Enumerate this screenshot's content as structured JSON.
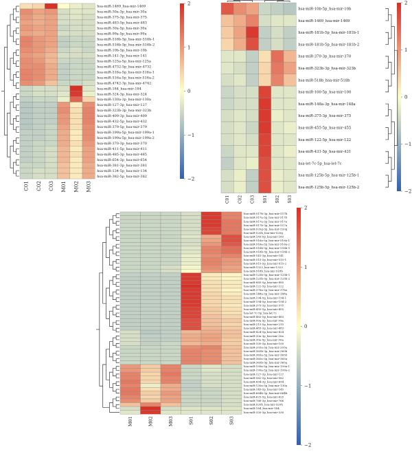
{
  "chart_data": [
    {
      "type": "heatmap",
      "columns": [
        "C01",
        "C02",
        "C03",
        "M01",
        "M02",
        "M03"
      ],
      "rows": [
        "hsa-miR-1469_hsa-mir-1469",
        "hsa-miR-30a-3p_hsa-mir-30a",
        "hsa-miR-375-3p_hsa-mir-375",
        "hsa-miR-483-5p_hsa-mir-483",
        "hsa-miR-30a-5p_hsa-mir-30a",
        "hsa-miR-99a-5p_hsa-mir-99a",
        "hsa-miR-516b-5p_hsa-mir-516b-1",
        "hsa-miR-516b-5p_hsa-mir-516b-2",
        "hsa-miR-10b-5p_hsa-mir-10b",
        "hsa-miR-141-3p_hsa-mir-141",
        "hsa-miR-125a-5p_hsa-mir-125a",
        "hsa-miR-4732-5p_hsa-mir-4732",
        "hsa-miR-516a-5p_hsa-mir-516a-1",
        "hsa-miR-516a-5p_hsa-mir-516a-2",
        "hsa-miR-4742-3p_hsa-mir-4742",
        "hsa-miR-184_hsa-mir-184",
        "hsa-miR-324-3p_hsa-mir-324",
        "hsa-miR-130a-3p_hsa-mir-130a",
        "hsa-miR-127-3p_hsa-mir-127",
        "hsa-miR-323b-3p_hsa-mir-323b",
        "hsa-miR-409-3p_hsa-mir-409",
        "hsa-miR-432-5p_hsa-mir-432",
        "hsa-miR-379-5p_hsa-mir-379",
        "hsa-miR-199a-5p_hsa-mir-199a-1",
        "hsa-miR-199a-5p_hsa-mir-199a-2",
        "hsa-miR-370-3p_hsa-mir-370",
        "hsa-miR-411-5p_hsa-mir-411",
        "hsa-miR-485-3p_hsa-mir-485",
        "hsa-miR-654-3p_hsa-mir-654",
        "hsa-miR-381-3p_hsa-mir-381",
        "hsa-miR-134-5p_hsa-mir-134",
        "hsa-miR-382-5p_hsa-mir-382"
      ],
      "values": [
        [
          0.3,
          0.4,
          2.0,
          0.0,
          -0.2,
          -0.3
        ],
        [
          1.1,
          0.9,
          1.0,
          -0.4,
          -0.3,
          -0.3
        ],
        [
          1.0,
          0.8,
          0.9,
          -0.4,
          -0.3,
          -0.4
        ],
        [
          0.9,
          0.8,
          0.9,
          -0.4,
          -0.4,
          -0.4
        ],
        [
          1.0,
          0.9,
          0.9,
          -0.5,
          -0.4,
          -0.4
        ],
        [
          0.9,
          0.8,
          0.9,
          -0.4,
          -0.4,
          -0.4
        ],
        [
          1.2,
          1.0,
          0.9,
          -0.6,
          -0.5,
          -0.5
        ],
        [
          1.2,
          1.0,
          0.9,
          -0.6,
          -0.5,
          -0.5
        ],
        [
          1.1,
          1.0,
          0.8,
          -0.5,
          -0.4,
          -0.5
        ],
        [
          1.0,
          0.9,
          0.7,
          -0.4,
          -0.4,
          -0.4
        ],
        [
          1.1,
          1.0,
          0.7,
          -0.5,
          -0.5,
          -0.5
        ],
        [
          1.1,
          1.1,
          0.8,
          -0.6,
          -0.5,
          -0.5
        ],
        [
          1.2,
          1.1,
          0.8,
          -0.6,
          -0.5,
          -0.5
        ],
        [
          1.2,
          1.1,
          0.8,
          -0.6,
          -0.5,
          -0.5
        ],
        [
          1.1,
          1.0,
          0.6,
          -0.5,
          -0.5,
          -0.4
        ],
        [
          -0.5,
          -0.4,
          -0.4,
          -0.4,
          2.0,
          -0.3
        ],
        [
          -0.5,
          -0.4,
          -0.4,
          -0.3,
          1.9,
          -0.2
        ],
        [
          -0.6,
          -0.5,
          -0.5,
          -0.2,
          1.5,
          0.4
        ],
        [
          -0.7,
          -0.6,
          -0.6,
          1.0,
          0.2,
          1.1
        ],
        [
          -0.7,
          -0.6,
          -0.6,
          1.1,
          0.3,
          1.2
        ],
        [
          -0.7,
          -0.6,
          -0.6,
          1.0,
          0.3,
          1.2
        ],
        [
          -0.7,
          -0.6,
          -0.6,
          1.0,
          0.3,
          1.2
        ],
        [
          -0.7,
          -0.6,
          -0.5,
          0.9,
          0.3,
          1.1
        ],
        [
          -0.6,
          -0.6,
          -0.5,
          0.8,
          0.2,
          1.1
        ],
        [
          -0.6,
          -0.6,
          -0.5,
          0.8,
          0.2,
          1.1
        ],
        [
          -0.6,
          -0.5,
          -0.5,
          0.8,
          0.3,
          1.0
        ],
        [
          -0.6,
          -0.5,
          -0.4,
          0.7,
          0.2,
          0.9
        ],
        [
          -0.6,
          -0.5,
          -0.4,
          0.7,
          0.3,
          0.9
        ],
        [
          -0.6,
          -0.5,
          -0.4,
          0.7,
          0.2,
          0.9
        ],
        [
          -0.5,
          -0.5,
          -0.4,
          0.6,
          0.2,
          0.8
        ],
        [
          -0.5,
          -0.4,
          -0.4,
          0.6,
          0.2,
          0.8
        ],
        [
          -0.5,
          -0.4,
          -0.4,
          0.6,
          0.2,
          0.8
        ]
      ],
      "color_scale": {
        "min": -2,
        "max": 2,
        "ticks": [
          "2",
          "1",
          "0",
          "−1",
          "−2"
        ],
        "colors": [
          "#3060b0",
          "#ffffcc",
          "#d73027"
        ]
      }
    },
    {
      "type": "heatmap",
      "columns": [
        "C01",
        "C02",
        "C03",
        "S01",
        "S02",
        "S03"
      ],
      "rows": [
        "hsa-miR-10b-5p_hsa-mir-10b",
        "hsa-miR-1469_hsa-mir-1469",
        "hsa-miR-181b-5p_hsa-mir-181b-1",
        "hsa-miR-181b-5p_hsa-mir-181b-2",
        "hsa-miR-370-3p_hsa-mir-370",
        "hsa-miR-323b-3p_hsa-mir-323b",
        "hsa-miR-518b_hsa-mir-518b",
        "hsa-miR-100-5p_hsa-mir-100",
        "hsa-miR-148a-3p_hsa-mir-148a",
        "hsa-miR-375-3p_hsa-mir-375",
        "hsa-miR-455-5p_hsa-mir-455",
        "hsa-miR-122-5p_hsa-mir-122",
        "hsa-miR-431-5p_hsa-mir-431",
        "hsa-let-7c-5p_hsa-let-7c",
        "hsa-miR-125b-5p_hsa-mir-125b-1",
        "hsa-miR-125b-5p_hsa-mir-125b-2"
      ],
      "values": [
        [
          1.6,
          1.1,
          0.9,
          -0.5,
          -0.6,
          -0.7
        ],
        [
          0.6,
          0.8,
          1.2,
          -0.4,
          -0.3,
          -0.3
        ],
        [
          0.5,
          0.9,
          1.9,
          -0.6,
          -0.4,
          -0.6
        ],
        [
          0.4,
          0.8,
          1.7,
          -0.6,
          -0.4,
          -0.6
        ],
        [
          -0.3,
          -0.3,
          -0.6,
          0.3,
          1.4,
          0.7
        ],
        [
          -0.3,
          -0.4,
          -0.6,
          0.4,
          1.3,
          0.9
        ],
        [
          -0.4,
          -0.3,
          -0.6,
          0.4,
          1.2,
          0.6
        ],
        [
          -0.5,
          -0.4,
          -0.4,
          1.8,
          -0.3,
          -0.3
        ],
        [
          -0.5,
          -0.4,
          -0.4,
          1.9,
          -0.3,
          -0.3
        ],
        [
          -0.4,
          -0.3,
          -0.4,
          1.9,
          -0.2,
          -0.3
        ],
        [
          -0.4,
          -0.3,
          -0.5,
          1.9,
          -0.3,
          -0.2
        ],
        [
          -0.4,
          -0.3,
          -0.4,
          1.8,
          -0.3,
          -0.3
        ],
        [
          -0.5,
          -0.3,
          -0.3,
          1.8,
          -0.3,
          -0.2
        ],
        [
          -0.6,
          -0.3,
          -0.2,
          1.7,
          -0.3,
          -0.3
        ],
        [
          -0.4,
          -0.2,
          -0.6,
          1.7,
          -0.2,
          -0.3
        ],
        [
          -0.4,
          -0.2,
          -0.6,
          1.7,
          -0.2,
          -0.3
        ]
      ],
      "color_scale": {
        "min": -2,
        "max": 2,
        "ticks": [
          "2",
          "1",
          "0",
          "−1",
          "−2"
        ],
        "colors": [
          "#3060b0",
          "#ffffcc",
          "#d73027"
        ]
      }
    },
    {
      "type": "heatmap",
      "columns": [
        "M01",
        "M02",
        "M03",
        "S01",
        "S02",
        "S03"
      ],
      "rows": [
        "hsa-miR-517b-3p_hsa-mir-517b",
        "hsa-miR-517a-3p_hsa-mir-517b",
        "hsa-miR-517a-3p_hsa-mir-517a",
        "hsa-miR-517b-3p_hsa-mir-517a",
        "hsa-miR-520g-3p_hsa-mir-520g",
        "hsa-miR-520h_hsa-mir-520g",
        "hsa-miR-183-5p_hsa-mir-183",
        "hsa-miR-516a-5p_hsa-mir-516a-1",
        "hsa-miR-516a-5p_hsa-mir-516a-2",
        "hsa-miR-516b-5p_hsa-mir-516b-1",
        "hsa-miR-516b-5p_hsa-mir-516b-2",
        "hsa-miR-141-3p_hsa-mir-141",
        "hsa-miR-515-5p_hsa-mir-515-1",
        "hsa-miR-515-5p_hsa-mir-515-2",
        "hsa-miR-1323_hsa-mir-1323",
        "hsa-miR-518b_hsa-mir-518b",
        "hsa-miR-125b-5p_hsa-mir-125b-1",
        "hsa-miR-125b-5p_hsa-mir-125b-2",
        "hsa-miR-885-5p_hsa-mir-885",
        "hsa-miR-122-5p_hsa-mir-122",
        "hsa-miR-378a-3p_hsa-mir-378a",
        "hsa-miR-148a-3p_hsa-mir-148a",
        "hsa-miR-194-5p_hsa-mir-194-1",
        "hsa-miR-194-5p_hsa-mir-194-2",
        "hsa-miR-375-3p_hsa-mir-375",
        "hsa-miR-455-5p_hsa-mir-455",
        "hsa-let-7c-5p_hsa-let-7c",
        "hsa-miR-483-5p_hsa-mir-483",
        "hsa-miR-99a-5p_hsa-mir-99a",
        "hsa-miR-215-5p_hsa-mir-215",
        "hsa-miR-483-3p_hsa-mir-483",
        "hsa-miR-424-5p_hsa-mir-424",
        "hsa-miR-30a-3p_hsa-mir-30a",
        "hsa-miR-30e-5p_hsa-mir-30a",
        "hsa-miR-100-5p_hsa-mir-100",
        "hsa-miR-203a-3p_hsa-mir-203a",
        "hsa-miR-365b-3p_hsa-mir-365b",
        "hsa-miR-365a-3p_hsa-mir-365b",
        "hsa-miR-365a-3p_hsa-mir-365a",
        "hsa-miR-365b-3p_hsa-mir-365a",
        "hsa-miR-199a-5p_hsa-mir-199a-1",
        "hsa-miR-199a-5p_hsa-mir-199a-2",
        "hsa-miR-127-3p_hsa-mir-127",
        "hsa-miR-582-5p_hsa-mir-582",
        "hsa-miR-654-3p_hsa-mir-654",
        "hsa-miR-130a-3p_hsa-mir-130a",
        "hsa-miR-145-5p_hsa-mir-145",
        "hsa-miR-664b-5p_hsa-mir-664b",
        "hsa-miR-625-5p_hsa-mir-625",
        "hsa-miR-766-3p_hsa-mir-766",
        "hsa-miR-520h_hsa-mir-520h",
        "hsa-miR-184_hsa-mir-184",
        "hsa-miR-330-3p_hsa-mir-330"
      ],
      "values": [
        [
          -0.5,
          -0.5,
          -0.5,
          -0.4,
          1.9,
          1.2
        ],
        [
          -0.5,
          -0.5,
          -0.5,
          -0.4,
          1.9,
          1.2
        ],
        [
          -0.5,
          -0.5,
          -0.5,
          -0.4,
          1.9,
          1.3
        ],
        [
          -0.5,
          -0.5,
          -0.5,
          -0.4,
          1.9,
          1.3
        ],
        [
          -0.5,
          -0.5,
          -0.5,
          -0.4,
          1.8,
          1.3
        ],
        [
          -0.5,
          -0.5,
          -0.5,
          -0.4,
          1.8,
          1.3
        ],
        [
          -0.5,
          -0.5,
          -0.5,
          -0.3,
          0.8,
          1.7
        ],
        [
          -0.5,
          -0.5,
          -0.5,
          -0.4,
          0.9,
          1.7
        ],
        [
          -0.5,
          -0.5,
          -0.5,
          -0.4,
          1.0,
          1.6
        ],
        [
          -0.5,
          -0.5,
          -0.5,
          -0.3,
          1.2,
          1.4
        ],
        [
          -0.5,
          -0.5,
          -0.5,
          -0.3,
          1.2,
          1.4
        ],
        [
          -0.5,
          -0.5,
          -0.5,
          -0.2,
          1.1,
          1.2
        ],
        [
          -0.5,
          -0.5,
          -0.5,
          -0.2,
          1.2,
          1.0
        ],
        [
          -0.5,
          -0.5,
          -0.5,
          -0.2,
          1.2,
          1.0
        ],
        [
          -0.5,
          -0.5,
          -0.4,
          -0.1,
          1.1,
          0.9
        ],
        [
          -0.5,
          -0.5,
          -0.4,
          0.0,
          1.0,
          0.9
        ],
        [
          -0.6,
          -0.6,
          -0.6,
          1.9,
          0.2,
          0.1
        ],
        [
          -0.6,
          -0.6,
          -0.6,
          1.9,
          0.2,
          0.1
        ],
        [
          -0.6,
          -0.6,
          -0.6,
          1.9,
          0.3,
          0.2
        ],
        [
          -0.6,
          -0.6,
          -0.6,
          2.0,
          0.3,
          0.2
        ],
        [
          -0.6,
          -0.6,
          -0.6,
          1.9,
          0.3,
          0.1
        ],
        [
          -0.6,
          -0.6,
          -0.6,
          1.9,
          0.4,
          0.2
        ],
        [
          -0.6,
          -0.6,
          -0.6,
          1.9,
          0.4,
          0.3
        ],
        [
          -0.6,
          -0.6,
          -0.6,
          1.9,
          0.4,
          0.3
        ],
        [
          -0.6,
          -0.6,
          -0.6,
          1.9,
          0.4,
          0.2
        ],
        [
          -0.6,
          -0.6,
          -0.6,
          1.8,
          0.5,
          0.3
        ],
        [
          -0.6,
          -0.6,
          -0.6,
          1.8,
          0.5,
          0.3
        ],
        [
          -0.6,
          -0.6,
          -0.6,
          1.8,
          0.6,
          0.4
        ],
        [
          -0.6,
          -0.6,
          -0.6,
          1.7,
          0.6,
          0.5
        ],
        [
          -0.6,
          -0.6,
          -0.6,
          1.7,
          0.6,
          0.4
        ],
        [
          -0.6,
          -0.6,
          -0.6,
          1.7,
          0.7,
          0.5
        ],
        [
          -0.4,
          -0.7,
          -0.6,
          0.7,
          0.8,
          0.6
        ],
        [
          -0.4,
          -0.6,
          -0.6,
          0.8,
          0.9,
          0.6
        ],
        [
          -0.4,
          -0.6,
          -0.6,
          0.8,
          0.9,
          0.5
        ],
        [
          -0.4,
          -0.6,
          -0.5,
          0.7,
          0.8,
          0.5
        ],
        [
          -0.5,
          -0.5,
          -0.5,
          1.1,
          1.2,
          0.6
        ],
        [
          -0.5,
          -0.5,
          -0.5,
          1.2,
          1.1,
          0.6
        ],
        [
          -0.5,
          -0.5,
          -0.5,
          1.2,
          1.1,
          0.6
        ],
        [
          -0.5,
          -0.5,
          -0.5,
          1.2,
          1.1,
          0.6
        ],
        [
          -0.5,
          -0.5,
          -0.5,
          1.2,
          1.1,
          0.6
        ],
        [
          1.0,
          0.5,
          1.2,
          -0.5,
          -0.3,
          -0.4
        ],
        [
          1.0,
          0.5,
          1.2,
          -0.5,
          -0.3,
          -0.4
        ],
        [
          1.2,
          0.4,
          1.3,
          -0.5,
          -0.4,
          -0.4
        ],
        [
          1.2,
          0.4,
          1.2,
          -0.5,
          -0.4,
          -0.4
        ],
        [
          1.3,
          0.4,
          1.2,
          -0.6,
          -0.4,
          -0.4
        ],
        [
          1.2,
          -0.2,
          0.8,
          -0.6,
          -0.4,
          -0.4
        ],
        [
          1.3,
          0.3,
          0.8,
          -0.6,
          -0.5,
          -0.4
        ],
        [
          1.3,
          0.5,
          1.0,
          -0.5,
          -0.5,
          -0.4
        ],
        [
          1.2,
          0.4,
          0.9,
          -0.5,
          -0.5,
          -0.4
        ],
        [
          1.1,
          0.5,
          0.9,
          -0.5,
          -0.5,
          -0.4
        ],
        [
          0.6,
          1.2,
          0.6,
          -0.5,
          -0.5,
          -0.4
        ],
        [
          -0.4,
          2.0,
          -0.4,
          -0.3,
          -0.3,
          -0.3
        ],
        [
          -0.3,
          1.9,
          -0.3,
          -0.3,
          -0.3,
          -0.3
        ]
      ],
      "color_scale": {
        "min": -2,
        "max": 2,
        "ticks": [
          "2",
          "1",
          "0",
          "−1",
          "−2"
        ],
        "colors": [
          "#3060b0",
          "#ffffcc",
          "#d73027"
        ]
      }
    }
  ]
}
